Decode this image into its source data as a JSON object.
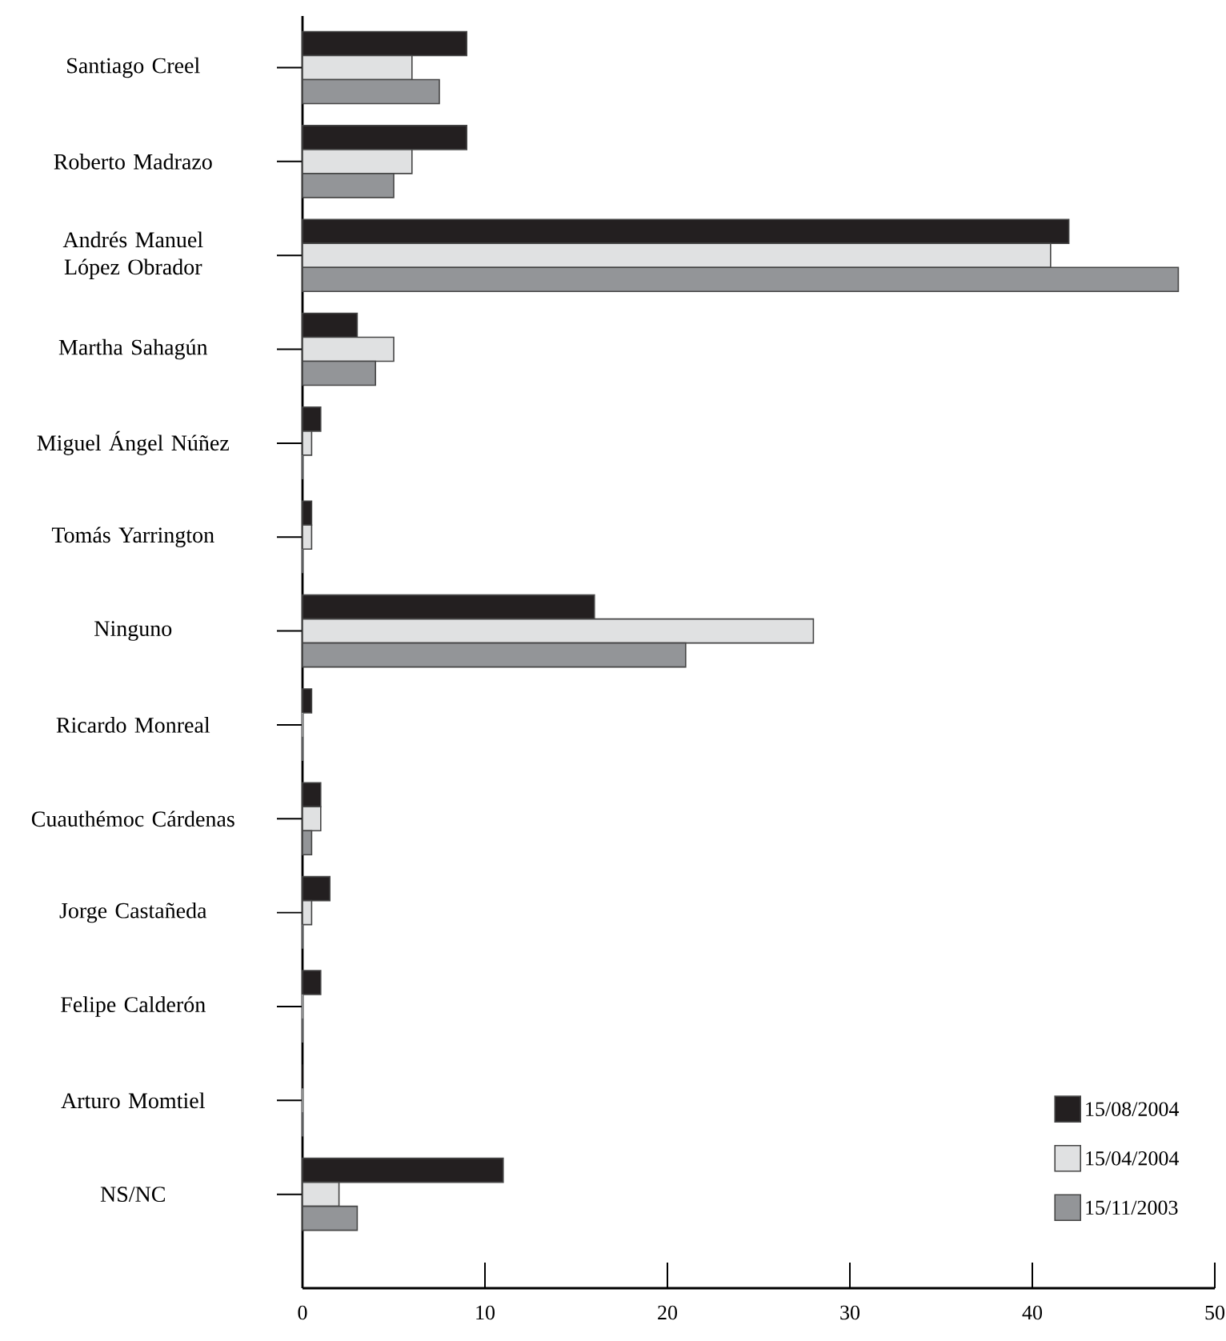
{
  "chart_data": {
    "type": "bar",
    "orientation": "horizontal",
    "categories": [
      "Santiago Creel",
      "Roberto Madrazo",
      "Andrés Manuel López Obrador",
      "Martha Sahagún",
      "Miguel Ángel Núñez",
      "Tomás Yarrington",
      "Ninguno",
      "Ricardo Monreal",
      "Cuauthémoc Cárdenas",
      "Jorge Castañeda",
      "Felipe Calderón",
      "Arturo Momtiel",
      "NS/NC"
    ],
    "series": [
      {
        "name": "15/08/2004",
        "color": "#231f20",
        "values": [
          9,
          9,
          42,
          3,
          1,
          0.5,
          16,
          0.5,
          1,
          1.5,
          1,
          0,
          11
        ]
      },
      {
        "name": "15/04/2004",
        "color": "#e0e1e2",
        "values": [
          6,
          6,
          41,
          5,
          0.5,
          0.5,
          28,
          0,
          1,
          0.5,
          0,
          0,
          2
        ]
      },
      {
        "name": "15/11/2003",
        "color": "#939598",
        "values": [
          7.5,
          5,
          48,
          4,
          0,
          0,
          21,
          0,
          0.5,
          0,
          0,
          0,
          3
        ]
      }
    ],
    "xlim": [
      0,
      50
    ],
    "xticks": [
      0,
      10,
      20,
      30,
      40,
      50
    ],
    "legend": "bottom right"
  }
}
